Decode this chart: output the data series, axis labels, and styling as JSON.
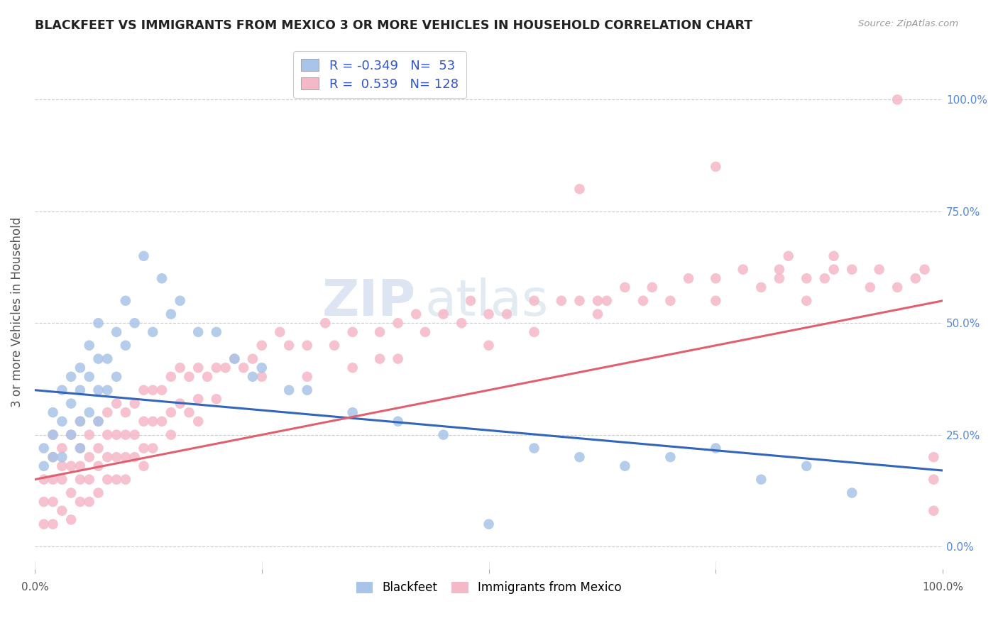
{
  "title": "BLACKFEET VS IMMIGRANTS FROM MEXICO 3 OR MORE VEHICLES IN HOUSEHOLD CORRELATION CHART",
  "source": "Source: ZipAtlas.com",
  "ylabel": "3 or more Vehicles in Household",
  "xlim": [
    0.0,
    100.0
  ],
  "ylim": [
    -5.0,
    110.0
  ],
  "yticks": [
    0,
    25,
    50,
    75,
    100
  ],
  "right_ytick_labels": [
    "0.0%",
    "25.0%",
    "50.0%",
    "75.0%",
    "100.0%"
  ],
  "xtick_left_label": "0.0%",
  "xtick_right_label": "100.0%",
  "blue_color": "#a8c4e8",
  "pink_color": "#f5b8c8",
  "blue_line_color": "#3366bb",
  "pink_line_color": "#e06070",
  "R_blue": -0.349,
  "N_blue": 53,
  "R_pink": 0.539,
  "N_pink": 128,
  "watermark_zip": "ZIP",
  "watermark_atlas": "atlas",
  "legend_color": "#3355cc",
  "blue_trend_start": 35,
  "blue_trend_end": 17,
  "pink_trend_start": 15,
  "pink_trend_end": 55,
  "blue_scatter_x": [
    1,
    1,
    2,
    2,
    2,
    3,
    3,
    3,
    4,
    4,
    4,
    5,
    5,
    5,
    5,
    6,
    6,
    6,
    7,
    7,
    7,
    7,
    8,
    8,
    9,
    9,
    10,
    10,
    11,
    12,
    13,
    14,
    15,
    16,
    18,
    20,
    22,
    24,
    25,
    28,
    30,
    35,
    40,
    45,
    50,
    55,
    60,
    65,
    70,
    75,
    80,
    85,
    90
  ],
  "blue_scatter_y": [
    22,
    18,
    30,
    25,
    20,
    35,
    28,
    20,
    38,
    32,
    25,
    40,
    35,
    28,
    22,
    45,
    38,
    30,
    50,
    42,
    35,
    28,
    42,
    35,
    48,
    38,
    55,
    45,
    50,
    65,
    48,
    60,
    52,
    55,
    48,
    48,
    42,
    38,
    40,
    35,
    35,
    30,
    28,
    25,
    5,
    22,
    20,
    18,
    20,
    22,
    15,
    18,
    12
  ],
  "pink_scatter_x": [
    1,
    1,
    1,
    2,
    2,
    2,
    2,
    2,
    3,
    3,
    3,
    3,
    4,
    4,
    4,
    4,
    5,
    5,
    5,
    5,
    5,
    6,
    6,
    6,
    6,
    7,
    7,
    7,
    7,
    8,
    8,
    8,
    8,
    9,
    9,
    9,
    9,
    10,
    10,
    10,
    10,
    11,
    11,
    11,
    12,
    12,
    12,
    12,
    13,
    13,
    13,
    14,
    14,
    15,
    15,
    15,
    16,
    16,
    17,
    17,
    18,
    18,
    18,
    19,
    20,
    20,
    21,
    22,
    23,
    24,
    25,
    25,
    27,
    28,
    30,
    30,
    32,
    33,
    35,
    35,
    38,
    38,
    40,
    40,
    42,
    43,
    45,
    47,
    48,
    50,
    50,
    52,
    55,
    55,
    58,
    60,
    62,
    63,
    65,
    67,
    68,
    70,
    72,
    75,
    75,
    78,
    80,
    82,
    83,
    85,
    85,
    87,
    88,
    90,
    92,
    93,
    95,
    97,
    98,
    99,
    99,
    99,
    60,
    75,
    62,
    82,
    88,
    95
  ],
  "pink_scatter_y": [
    15,
    10,
    5,
    20,
    15,
    10,
    5,
    25,
    18,
    22,
    15,
    8,
    25,
    18,
    12,
    6,
    22,
    18,
    15,
    10,
    28,
    25,
    20,
    15,
    10,
    28,
    22,
    18,
    12,
    30,
    25,
    20,
    15,
    32,
    25,
    20,
    15,
    30,
    25,
    20,
    15,
    32,
    25,
    20,
    35,
    28,
    22,
    18,
    35,
    28,
    22,
    35,
    28,
    38,
    30,
    25,
    40,
    32,
    38,
    30,
    40,
    33,
    28,
    38,
    40,
    33,
    40,
    42,
    40,
    42,
    45,
    38,
    48,
    45,
    45,
    38,
    50,
    45,
    48,
    40,
    48,
    42,
    50,
    42,
    52,
    48,
    52,
    50,
    55,
    52,
    45,
    52,
    55,
    48,
    55,
    55,
    52,
    55,
    58,
    55,
    58,
    55,
    60,
    60,
    55,
    62,
    58,
    62,
    65,
    60,
    55,
    60,
    62,
    62,
    58,
    62,
    58,
    60,
    62,
    15,
    20,
    8,
    80,
    85,
    55,
    60,
    65,
    100
  ]
}
